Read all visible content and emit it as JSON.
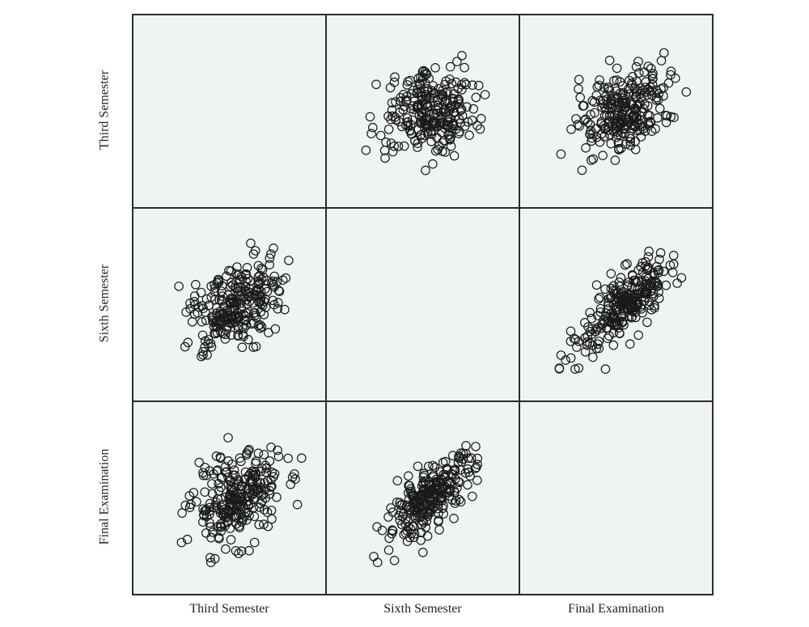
{
  "chart_data": {
    "type": "scatter-matrix",
    "variables": [
      "Third Semester",
      "Sixth Semester",
      "Final Examination"
    ],
    "grid": false,
    "legend": "none",
    "marker": "open-circle",
    "colors": {
      "panel_bg": "#eef3f4",
      "border": "#2b2b2b",
      "marker": "#1a1a1a"
    },
    "panels": [
      {
        "row": "Third Semester",
        "col": "Sixth Semester",
        "corr": 0.3,
        "n": 260
      },
      {
        "row": "Third Semester",
        "col": "Final Examination",
        "corr": 0.3,
        "n": 260
      },
      {
        "row": "Sixth Semester",
        "col": "Third Semester",
        "corr": 0.3,
        "n": 260
      },
      {
        "row": "Sixth Semester",
        "col": "Final Examination",
        "corr": 0.75,
        "n": 260
      },
      {
        "row": "Final Examination",
        "col": "Third Semester",
        "corr": 0.3,
        "n": 260
      },
      {
        "row": "Final Examination",
        "col": "Sixth Semester",
        "corr": 0.75,
        "n": 260
      }
    ]
  }
}
